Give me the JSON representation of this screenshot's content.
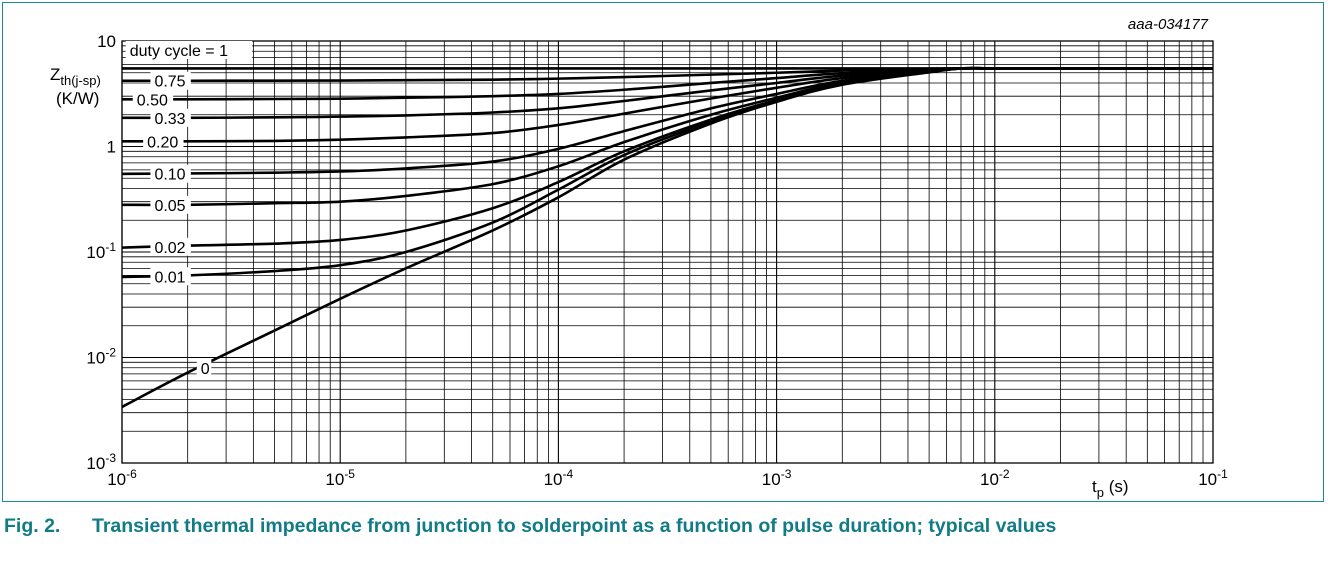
{
  "figure": {
    "code": "aaa-034177",
    "number": "Fig. 2.",
    "caption": "Transient thermal impedance from junction to solderpoint as a function of pulse duration; typical values"
  },
  "chart_data": {
    "type": "line",
    "title": "",
    "xlabel": {
      "main": "t",
      "sub": "p",
      "unit": "(s)"
    },
    "ylabel": {
      "main": "Z",
      "sub": "th(j-sp)",
      "unit": "(K/W)"
    },
    "xscale": "log",
    "yscale": "log",
    "xlim": [
      1e-06,
      0.1
    ],
    "ylim": [
      0.001,
      10
    ],
    "grid": true,
    "x_tick_labels": [
      {
        "base": "10",
        "exp": "-6"
      },
      {
        "base": "10",
        "exp": "-5"
      },
      {
        "base": "10",
        "exp": "-4"
      },
      {
        "base": "10",
        "exp": "-3"
      },
      {
        "base": "10",
        "exp": "-2"
      },
      {
        "base": "10",
        "exp": "-1"
      }
    ],
    "y_tick_labels": [
      {
        "base": "10",
        "exp": ""
      },
      {
        "base": "1",
        "exp": ""
      },
      {
        "base": "10",
        "exp": "-1"
      },
      {
        "base": "10",
        "exp": "-2"
      },
      {
        "base": "10",
        "exp": "-3"
      }
    ],
    "x": [
      1e-06,
      2e-06,
      5e-06,
      1e-05,
      2e-05,
      5e-05,
      0.0001,
      0.0002,
      0.0005,
      0.001,
      0.002,
      0.005,
      0.007,
      0.01,
      0.02,
      0.05,
      0.1
    ],
    "series": [
      {
        "name": "duty cycle = 1",
        "values": [
          5.5,
          5.5,
          5.5,
          5.5,
          5.5,
          5.5,
          5.5,
          5.5,
          5.5,
          5.5,
          5.5,
          5.5,
          5.5,
          5.5,
          5.5,
          5.5,
          5.5
        ]
      },
      {
        "name": "0.75",
        "values": [
          4.2,
          4.2,
          4.21,
          4.22,
          4.25,
          4.3,
          4.4,
          4.55,
          4.8,
          5.0,
          5.25,
          5.45,
          5.5,
          5.5,
          5.5,
          5.5,
          5.5
        ]
      },
      {
        "name": "0.50",
        "values": [
          2.8,
          2.8,
          2.82,
          2.84,
          2.9,
          3.0,
          3.15,
          3.45,
          4.0,
          4.45,
          4.95,
          5.35,
          5.5,
          5.5,
          5.5,
          5.5,
          5.5
        ]
      },
      {
        "name": "0.33",
        "values": [
          1.87,
          1.87,
          1.89,
          1.92,
          1.97,
          2.1,
          2.3,
          2.7,
          3.4,
          4.0,
          4.7,
          5.3,
          5.5,
          5.5,
          5.5,
          5.5,
          5.5
        ]
      },
      {
        "name": "0.20",
        "values": [
          1.12,
          1.12,
          1.13,
          1.16,
          1.22,
          1.34,
          1.6,
          2.05,
          2.85,
          3.6,
          4.45,
          5.25,
          5.5,
          5.5,
          5.5,
          5.5,
          5.5
        ]
      },
      {
        "name": "0.10",
        "values": [
          0.55,
          0.555,
          0.565,
          0.58,
          0.62,
          0.72,
          0.95,
          1.4,
          2.3,
          3.15,
          4.2,
          5.2,
          5.5,
          5.5,
          5.5,
          5.5,
          5.5
        ]
      },
      {
        "name": "0.05",
        "values": [
          0.28,
          0.28,
          0.29,
          0.3,
          0.34,
          0.44,
          0.65,
          1.1,
          2.0,
          2.9,
          4.05,
          5.15,
          5.5,
          5.5,
          5.5,
          5.5,
          5.5
        ]
      },
      {
        "name": "0.02",
        "values": [
          0.11,
          0.115,
          0.12,
          0.13,
          0.16,
          0.26,
          0.46,
          0.9,
          1.8,
          2.75,
          3.95,
          5.1,
          5.5,
          5.5,
          5.5,
          5.5,
          5.5
        ]
      },
      {
        "name": "0.01",
        "values": [
          0.058,
          0.06,
          0.066,
          0.075,
          0.1,
          0.19,
          0.39,
          0.83,
          1.72,
          2.7,
          3.9,
          5.1,
          5.5,
          5.5,
          5.5,
          5.5,
          5.5
        ]
      },
      {
        "name": "0",
        "values": [
          0.0034,
          0.0072,
          0.018,
          0.036,
          0.07,
          0.16,
          0.33,
          0.75,
          1.65,
          2.65,
          3.85,
          5.05,
          5.5,
          5.5,
          5.5,
          5.5,
          5.5
        ]
      }
    ]
  }
}
